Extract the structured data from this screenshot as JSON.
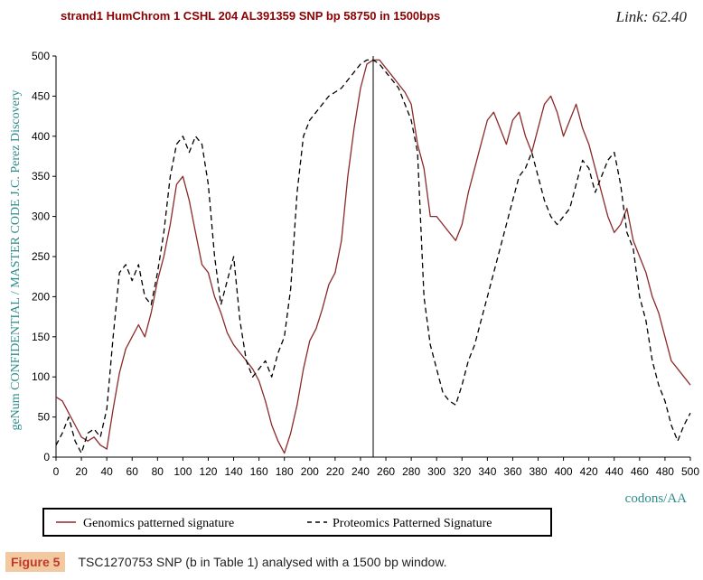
{
  "header": {
    "title": "strand1 HumChrom  1 CSHL 204 AL391359  SNP bp 58750  in 1500bps",
    "link": "Link: 62.40"
  },
  "caption": {
    "label": "Figure 5",
    "text": "TSC1270753 SNP (b in Table 1) analysed with a 1500 bp window."
  },
  "colors": {
    "genomics": "#8b2a2a",
    "proteomics": "#000000",
    "axis_text": "#2e8b8b",
    "title": "#8b0000"
  },
  "chart_data": {
    "type": "line",
    "ylabel": "geNum CONFIDENTIAL / MASTER CODE J.C. Perez Discovery",
    "xlabel": "codons/AA",
    "xlim": [
      0,
      500
    ],
    "ylim": [
      0,
      500
    ],
    "xticks": [
      0,
      20,
      40,
      60,
      80,
      100,
      120,
      140,
      160,
      180,
      200,
      220,
      240,
      260,
      280,
      300,
      320,
      340,
      360,
      380,
      400,
      420,
      440,
      460,
      480,
      500
    ],
    "yticks": [
      0,
      50,
      100,
      150,
      200,
      250,
      300,
      350,
      400,
      450,
      500
    ],
    "marker_x": 250,
    "series": [
      {
        "name": "Genomics patterned signature",
        "style": "solid",
        "x": [
          0,
          5,
          10,
          15,
          20,
          25,
          30,
          35,
          40,
          45,
          50,
          55,
          60,
          65,
          70,
          75,
          80,
          85,
          90,
          95,
          100,
          105,
          110,
          115,
          120,
          125,
          130,
          135,
          140,
          145,
          150,
          155,
          160,
          165,
          170,
          175,
          180,
          185,
          190,
          195,
          200,
          205,
          210,
          215,
          220,
          225,
          230,
          235,
          240,
          245,
          250,
          255,
          260,
          265,
          270,
          275,
          280,
          285,
          290,
          295,
          300,
          305,
          310,
          315,
          320,
          325,
          330,
          335,
          340,
          345,
          350,
          355,
          360,
          365,
          370,
          375,
          380,
          385,
          390,
          395,
          400,
          405,
          410,
          415,
          420,
          425,
          430,
          435,
          440,
          445,
          450,
          455,
          460,
          465,
          470,
          475,
          480,
          485,
          490,
          495,
          500
        ],
        "y": [
          75,
          70,
          55,
          40,
          25,
          20,
          25,
          15,
          10,
          60,
          105,
          135,
          150,
          165,
          150,
          180,
          220,
          250,
          290,
          340,
          350,
          320,
          280,
          240,
          230,
          200,
          180,
          155,
          140,
          130,
          120,
          110,
          95,
          70,
          40,
          20,
          5,
          30,
          65,
          110,
          145,
          160,
          185,
          215,
          230,
          270,
          350,
          410,
          460,
          490,
          495,
          495,
          485,
          475,
          465,
          455,
          440,
          390,
          360,
          300,
          300,
          290,
          280,
          270,
          290,
          330,
          360,
          390,
          420,
          430,
          410,
          390,
          420,
          430,
          400,
          380,
          410,
          440,
          450,
          430,
          400,
          420,
          440,
          410,
          390,
          360,
          330,
          300,
          280,
          290,
          310,
          270,
          250,
          230,
          200,
          180,
          150,
          120,
          110,
          100,
          90
        ]
      },
      {
        "name": "Proteomics Patterned Signature",
        "style": "dashed",
        "x": [
          0,
          5,
          10,
          15,
          20,
          25,
          30,
          35,
          40,
          45,
          50,
          55,
          60,
          65,
          70,
          75,
          80,
          85,
          90,
          95,
          100,
          105,
          110,
          115,
          120,
          125,
          130,
          135,
          140,
          145,
          150,
          155,
          160,
          165,
          170,
          175,
          180,
          185,
          190,
          195,
          200,
          205,
          210,
          215,
          220,
          225,
          230,
          235,
          240,
          245,
          250,
          255,
          260,
          265,
          270,
          275,
          280,
          285,
          290,
          295,
          300,
          305,
          310,
          315,
          320,
          325,
          330,
          335,
          340,
          345,
          350,
          355,
          360,
          365,
          370,
          375,
          380,
          385,
          390,
          395,
          400,
          405,
          410,
          415,
          420,
          425,
          430,
          435,
          440,
          445,
          450,
          455,
          460,
          465,
          470,
          475,
          480,
          485,
          490,
          495,
          500
        ],
        "y": [
          15,
          30,
          50,
          20,
          5,
          30,
          35,
          25,
          60,
          150,
          230,
          240,
          220,
          240,
          200,
          190,
          230,
          280,
          350,
          390,
          400,
          380,
          400,
          390,
          340,
          250,
          190,
          220,
          250,
          170,
          120,
          100,
          110,
          120,
          100,
          130,
          150,
          210,
          330,
          400,
          420,
          430,
          440,
          450,
          455,
          460,
          470,
          480,
          490,
          495,
          495,
          490,
          480,
          470,
          460,
          440,
          420,
          380,
          200,
          140,
          110,
          80,
          70,
          65,
          90,
          120,
          140,
          170,
          200,
          230,
          260,
          290,
          320,
          350,
          360,
          380,
          350,
          320,
          300,
          290,
          300,
          310,
          340,
          370,
          360,
          330,
          350,
          370,
          380,
          340,
          280,
          260,
          200,
          170,
          120,
          90,
          70,
          40,
          20,
          40,
          55
        ]
      }
    ]
  }
}
